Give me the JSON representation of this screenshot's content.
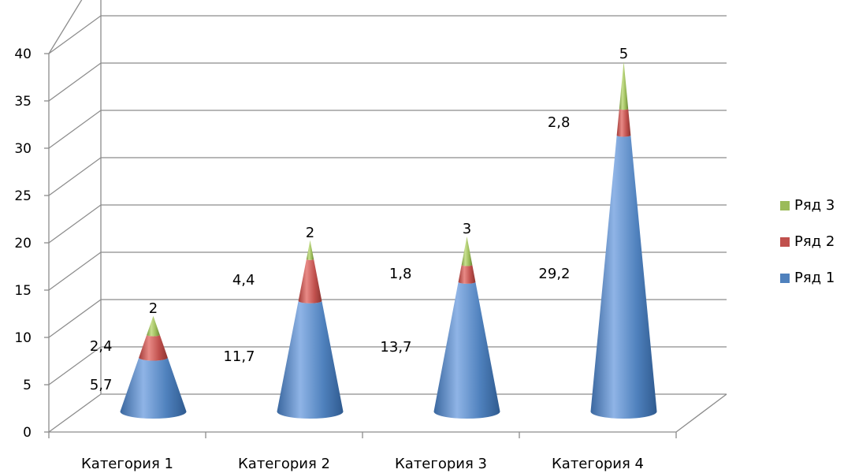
{
  "chart_data": {
    "type": "bar",
    "style": "3d-stacked-cone",
    "categories": [
      "Категория 1",
      "Категория 2",
      "Категория 3",
      "Категория 4"
    ],
    "series": [
      {
        "name": "Ряд 1",
        "values": [
          5.7,
          11.7,
          13.7,
          29.2
        ],
        "labels": [
          "5,7",
          "11,7",
          "13,7",
          "29,2"
        ],
        "color": "#4F81BD"
      },
      {
        "name": "Ряд 2",
        "values": [
          2.4,
          4.4,
          1.8,
          2.8
        ],
        "labels": [
          "2,4",
          "4,4",
          "1,8",
          "2,8"
        ],
        "color": "#C0504D"
      },
      {
        "name": "Ряд 3",
        "values": [
          2,
          2,
          3,
          5
        ],
        "labels": [
          "2",
          "2",
          "3",
          "5"
        ],
        "color": "#9BBB59"
      }
    ],
    "y_ticks": [
      "0",
      "5",
      "10",
      "15",
      "20",
      "25",
      "30",
      "35",
      "40"
    ],
    "ylim": [
      0,
      40
    ],
    "grid": true,
    "legend_position": "right"
  }
}
